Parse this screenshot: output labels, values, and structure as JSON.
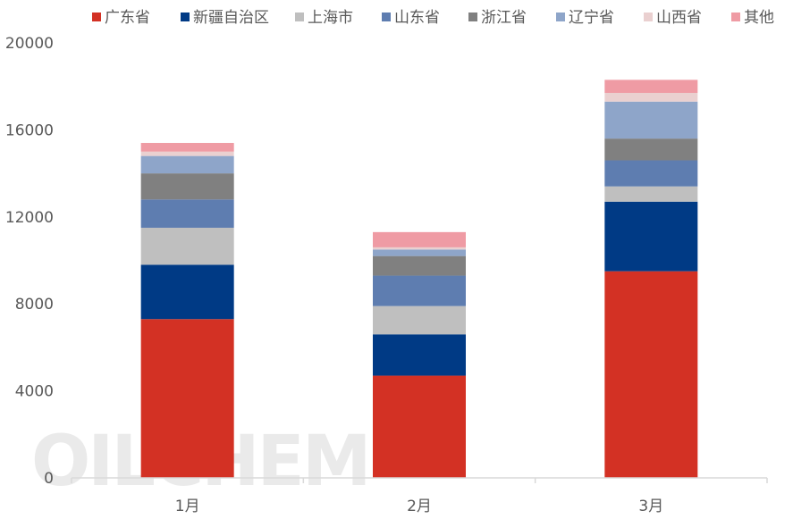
{
  "watermark": "OILCHEM",
  "chart_data": {
    "type": "bar",
    "stacked": true,
    "categories": [
      "1月",
      "2月",
      "3月"
    ],
    "ylim": [
      0,
      20000
    ],
    "yticks": [
      0,
      4000,
      8000,
      12000,
      16000,
      20000
    ],
    "ytick_labels": [
      "0",
      "4000",
      "8000",
      "12000",
      "16000",
      "20000"
    ],
    "legend_position": "top",
    "grid": false,
    "series": [
      {
        "name": "广东省",
        "color": "#d33124",
        "values": [
          7300,
          4700,
          9500
        ]
      },
      {
        "name": "新疆自治区",
        "color": "#003a85",
        "values": [
          2500,
          1900,
          3200
        ]
      },
      {
        "name": "上海市",
        "color": "#bfbfbf",
        "values": [
          1700,
          1300,
          700
        ]
      },
      {
        "name": "山东省",
        "color": "#5e7db0",
        "values": [
          1300,
          1400,
          1200
        ]
      },
      {
        "name": "浙江省",
        "color": "#808080",
        "values": [
          1200,
          900,
          1000
        ]
      },
      {
        "name": "辽宁省",
        "color": "#8ea5c9",
        "values": [
          800,
          300,
          1700
        ]
      },
      {
        "name": "山西省",
        "color": "#ead0d0",
        "values": [
          200,
          100,
          400
        ]
      },
      {
        "name": "其他",
        "color": "#ef9ba4",
        "values": [
          400,
          700,
          600
        ]
      }
    ]
  }
}
